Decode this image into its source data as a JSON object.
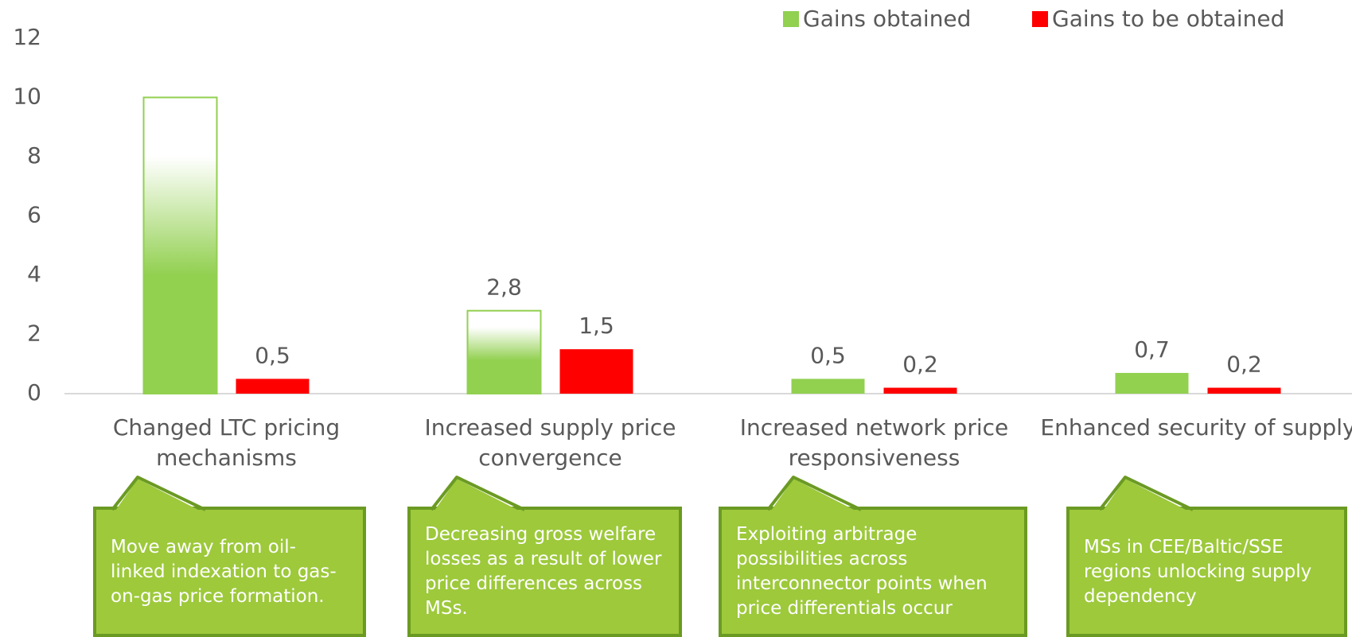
{
  "chart_data": {
    "type": "bar",
    "categories": [
      "Changed LTC pricing mechanisms",
      "Increased supply price convergence",
      "Increased network price responsiveness",
      "Enhanced security of supply"
    ],
    "series": [
      {
        "name": "Gains obtained",
        "color": "#92d050",
        "values": [
          10,
          2.8,
          0.5,
          0.7
        ],
        "value_labels": [
          null,
          "2,8",
          "0,5",
          "0,7"
        ]
      },
      {
        "name": "Gains to be obtained",
        "color": "#ff0000",
        "values": [
          0.5,
          1.5,
          0.2,
          0.2
        ],
        "value_labels": [
          "0,5",
          "1,5",
          "0,2",
          "0,2"
        ]
      }
    ],
    "ylim": [
      0,
      12
    ],
    "yticks": [
      0,
      2,
      4,
      6,
      8,
      10,
      12
    ],
    "grid": false,
    "legend": "top-right",
    "annotations": [
      "Move away from oil-linked indexation to gas-on-gas price formation.",
      "Decreasing gross welfare losses as a result of lower price differences across MSs.",
      "Exploiting arbitrage possibilities across interconnector points when price differentials occur",
      "MSs in CEE/Baltic/SSE regions unlocking supply dependency"
    ]
  }
}
